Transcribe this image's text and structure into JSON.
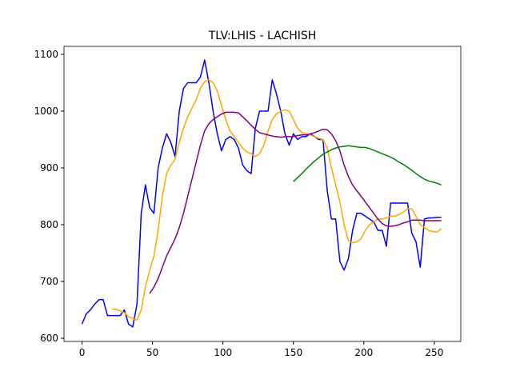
{
  "chart_data": {
    "type": "line",
    "title": "TLV:LHIS - LACHISH",
    "x": [
      0,
      3,
      6,
      9,
      12,
      15,
      18,
      21,
      24,
      27,
      30,
      33,
      36,
      39,
      42,
      45,
      48,
      51,
      54,
      57,
      60,
      63,
      66,
      69,
      72,
      75,
      78,
      81,
      84,
      87,
      90,
      93,
      96,
      99,
      102,
      105,
      108,
      111,
      114,
      117,
      120,
      123,
      126,
      129,
      132,
      135,
      138,
      141,
      144,
      147,
      150,
      153,
      156,
      159,
      162,
      165,
      168,
      171,
      174,
      177,
      180,
      183,
      186,
      189,
      192,
      195,
      198,
      201,
      204,
      207,
      210,
      213,
      216,
      219,
      222,
      225,
      228,
      231,
      234,
      237,
      240,
      243,
      246,
      249,
      252,
      255
    ],
    "series": [
      {
        "color": "#0000ff",
        "values": [
          625,
          643,
          650,
          660,
          668,
          668,
          640,
          640,
          640,
          640,
          650,
          625,
          620,
          660,
          820,
          870,
          830,
          820,
          900,
          935,
          960,
          945,
          920,
          1000,
          1040,
          1050,
          1050,
          1050,
          1060,
          1090,
          1050,
          1000,
          960,
          930,
          950,
          955,
          950,
          935,
          905,
          895,
          890,
          970,
          1000,
          1000,
          1000,
          1055,
          1030,
          1000,
          960,
          940,
          960,
          950,
          955,
          955,
          960,
          955,
          950,
          950,
          860,
          810,
          810,
          735,
          720,
          740,
          790,
          820,
          820,
          815,
          810,
          805,
          790,
          790,
          762,
          838,
          838,
          838,
          838,
          838,
          785,
          770,
          725,
          810,
          812,
          812,
          813,
          813
        ]
      },
      {
        "color": "#ffa500",
        "values": [
          null,
          null,
          null,
          null,
          null,
          null,
          null,
          651,
          651,
          648,
          645,
          638,
          635,
          632,
          650,
          690,
          720,
          745,
          790,
          850,
          890,
          905,
          915,
          945,
          970,
          990,
          1005,
          1020,
          1040,
          1052,
          1055,
          1050,
          1035,
          1010,
          985,
          965,
          955,
          945,
          935,
          928,
          925,
          920,
          925,
          940,
          965,
          985,
          995,
          1000,
          1002,
          1000,
          985,
          970,
          962,
          960,
          958,
          955,
          952,
          950,
          935,
          900,
          870,
          840,
          800,
          772,
          768,
          770,
          775,
          790,
          800,
          805,
          810,
          810,
          812,
          815,
          815,
          818,
          822,
          828,
          828,
          815,
          800,
          795,
          790,
          788,
          787,
          793
        ]
      },
      {
        "color": "#800080",
        "values": [
          null,
          null,
          null,
          null,
          null,
          null,
          null,
          null,
          null,
          null,
          null,
          null,
          null,
          null,
          null,
          null,
          679,
          690,
          705,
          725,
          745,
          760,
          775,
          795,
          820,
          850,
          880,
          910,
          940,
          965,
          978,
          985,
          990,
          995,
          998,
          998,
          998,
          997,
          990,
          983,
          975,
          968,
          962,
          960,
          958,
          956,
          955,
          954,
          955,
          955,
          955,
          957,
          958,
          958,
          960,
          962,
          965,
          968,
          967,
          960,
          948,
          930,
          905,
          885,
          870,
          860,
          850,
          840,
          830,
          820,
          810,
          802,
          798,
          797,
          798,
          800,
          803,
          805,
          808,
          808,
          808,
          807,
          807,
          807,
          807,
          807
        ]
      },
      {
        "color": "#008000",
        "values": [
          null,
          null,
          null,
          null,
          null,
          null,
          null,
          null,
          null,
          null,
          null,
          null,
          null,
          null,
          null,
          null,
          null,
          null,
          null,
          null,
          null,
          null,
          null,
          null,
          null,
          null,
          null,
          null,
          null,
          null,
          null,
          null,
          null,
          null,
          null,
          null,
          null,
          null,
          null,
          null,
          null,
          null,
          null,
          null,
          null,
          null,
          null,
          null,
          null,
          null,
          876,
          883,
          890,
          898,
          905,
          912,
          918,
          924,
          928,
          932,
          935,
          937,
          938,
          939,
          938,
          937,
          936,
          936,
          934,
          931,
          928,
          925,
          922,
          919,
          915,
          910,
          906,
          901,
          896,
          890,
          885,
          880,
          877,
          875,
          873,
          870
        ]
      }
    ],
    "xlim": [
      -12.8,
      268.8
    ],
    "ylim": [
      594.4,
      1114
    ],
    "xticks": [
      0,
      50,
      100,
      150,
      200,
      250
    ],
    "yticks": [
      600,
      700,
      800,
      900,
      1000,
      1100
    ]
  }
}
